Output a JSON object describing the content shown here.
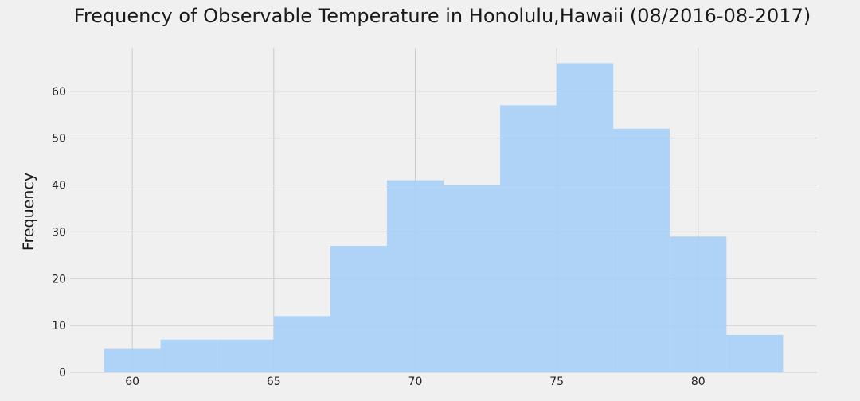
{
  "chart_data": {
    "type": "bar",
    "title": "Frequency of Observable Temperature in Honolulu,Hawaii (08/2016-08-2017)",
    "xlabel": "",
    "ylabel": "Frequency",
    "bins": [
      {
        "start": 59,
        "end": 61,
        "count": 5
      },
      {
        "start": 61,
        "end": 63,
        "count": 7
      },
      {
        "start": 63,
        "end": 65,
        "count": 7
      },
      {
        "start": 65,
        "end": 67,
        "count": 12
      },
      {
        "start": 67,
        "end": 69,
        "count": 27
      },
      {
        "start": 69,
        "end": 71,
        "count": 41
      },
      {
        "start": 71,
        "end": 73,
        "count": 40
      },
      {
        "start": 73,
        "end": 75,
        "count": 57
      },
      {
        "start": 75,
        "end": 77,
        "count": 66
      },
      {
        "start": 77,
        "end": 79,
        "count": 52
      },
      {
        "start": 79,
        "end": 81,
        "count": 29
      },
      {
        "start": 81,
        "end": 83,
        "count": 8
      }
    ],
    "xlim": [
      57.8,
      84.2
    ],
    "ylim": [
      0,
      69.3
    ],
    "xticks": [
      60,
      65,
      70,
      75,
      80
    ],
    "yticks": [
      0,
      10,
      20,
      30,
      40,
      50,
      60
    ],
    "grid": true,
    "bar_color": "#a6cff7",
    "background_color": "#f0f0f0",
    "grid_color": "#cbcbcb"
  }
}
